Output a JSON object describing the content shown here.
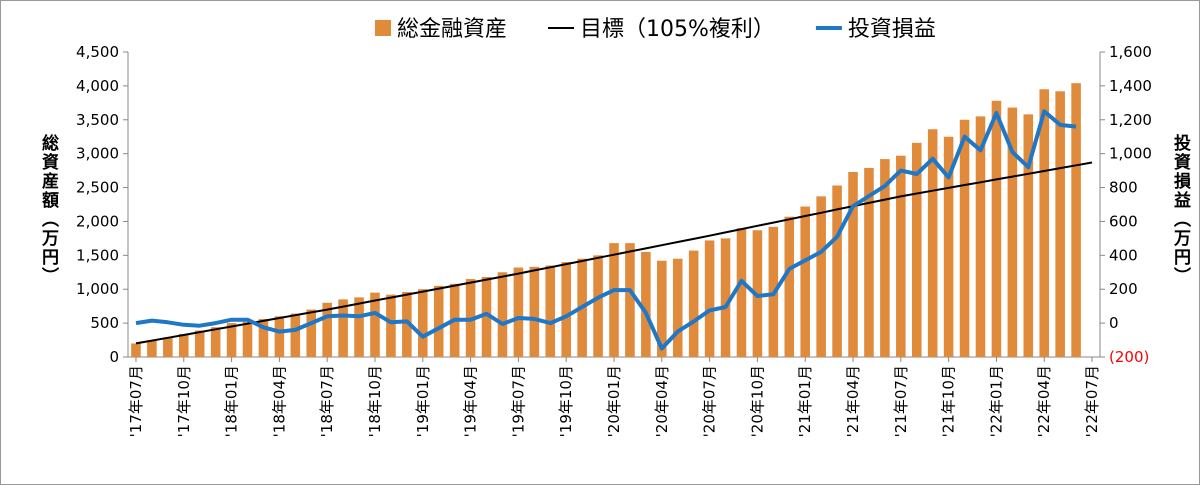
{
  "chart_data": {
    "type": "bar-line",
    "categories": [
      "'17年07月",
      null,
      null,
      "'17年10月",
      null,
      null,
      "'18年01月",
      null,
      null,
      "'18年04月",
      null,
      null,
      "'18年07月",
      null,
      null,
      "'18年10月",
      null,
      null,
      "'19年01月",
      null,
      null,
      "'19年04月",
      null,
      null,
      "'19年07月",
      null,
      null,
      "'19年10月",
      null,
      null,
      "'20年01月",
      null,
      null,
      "'20年04月",
      null,
      null,
      "'20年07月",
      null,
      null,
      "'20年10月",
      null,
      null,
      "'21年01月",
      null,
      null,
      "'21年04月",
      null,
      null,
      "'21年07月",
      null,
      null,
      "'21年10月",
      null,
      null,
      "'22年01月",
      null,
      null,
      "'22年04月",
      null,
      null,
      "'22年07月"
    ],
    "series": [
      {
        "name": "総金融資産",
        "type": "bar",
        "color": "#e08a3c",
        "values": [
          200,
          240,
          290,
          340,
          390,
          440,
          500,
          520,
          560,
          600,
          640,
          700,
          800,
          850,
          880,
          950,
          920,
          960,
          1000,
          1050,
          1080,
          1150,
          1180,
          1250,
          1320,
          1330,
          1350,
          1400,
          1450,
          1500,
          1680,
          1680,
          1550,
          1420,
          1450,
          1570,
          1720,
          1750,
          1900,
          1870,
          1920,
          2070,
          2220,
          2370,
          2530,
          2730,
          2790,
          2920,
          2970,
          3160,
          3360,
          3250,
          3500,
          3550,
          3780,
          3680,
          3580,
          3950,
          3920,
          4040,
          null
        ]
      },
      {
        "name": "目標（105%複利）",
        "type": "line",
        "color": "#000000",
        "width": 2,
        "values": [
          200,
          242,
          283,
          325,
          367,
          408,
          450,
          492,
          533,
          575,
          617,
          658,
          700,
          744,
          788,
          833,
          877,
          921,
          965,
          1009,
          1053,
          1098,
          1142,
          1186,
          1230,
          1277,
          1323,
          1370,
          1417,
          1463,
          1510,
          1557,
          1603,
          1650,
          1697,
          1743,
          1790,
          1838,
          1887,
          1935,
          1983,
          2032,
          2080,
          2128,
          2177,
          2225,
          2273,
          2322,
          2370,
          2412,
          2453,
          2495,
          2537,
          2578,
          2620,
          2662,
          2703,
          2745,
          2787,
          2828,
          2870
        ]
      },
      {
        "name": "投資損益",
        "type": "line",
        "axis": "y2",
        "color": "#1f77c8",
        "width": 4,
        "values": [
          0,
          15,
          5,
          -10,
          -15,
          0,
          20,
          20,
          -25,
          -50,
          -40,
          0,
          40,
          45,
          40,
          60,
          5,
          10,
          -80,
          -30,
          20,
          20,
          55,
          -5,
          30,
          25,
          0,
          40,
          95,
          150,
          195,
          195,
          60,
          -150,
          -50,
          10,
          75,
          95,
          250,
          160,
          170,
          320,
          370,
          420,
          510,
          690,
          750,
          810,
          900,
          880,
          970,
          860,
          1100,
          1020,
          1240,
          1010,
          920,
          1250,
          1170,
          1160,
          null
        ]
      }
    ],
    "y_label": "総資産額（万円）",
    "y2_label": "投資損益（万円）",
    "ylim": [
      0,
      4500
    ],
    "yticks": [
      0,
      500,
      {
        "value": 1000,
        "label": "1,000"
      },
      {
        "value": 1500,
        "label": "1,500"
      },
      {
        "value": 2000,
        "label": "2,000"
      },
      {
        "value": 2500,
        "label": "2,500"
      },
      {
        "value": 3000,
        "label": "3,000"
      },
      {
        "value": 3500,
        "label": "3,500"
      },
      {
        "value": 4000,
        "label": "4,000"
      },
      {
        "value": 4500,
        "label": "4,500"
      }
    ],
    "y2lim": [
      -200,
      1600
    ],
    "y2ticks": [
      {
        "value": -200,
        "label": "(200)"
      },
      0,
      200,
      400,
      600,
      800,
      {
        "value": 1000,
        "label": "1,000"
      },
      {
        "value": 1200,
        "label": "1,200"
      },
      {
        "value": 1400,
        "label": "1,400"
      },
      {
        "value": 1600,
        "label": "1,600"
      }
    ],
    "negative_tick_color": "#ff0000",
    "legend": "top"
  }
}
